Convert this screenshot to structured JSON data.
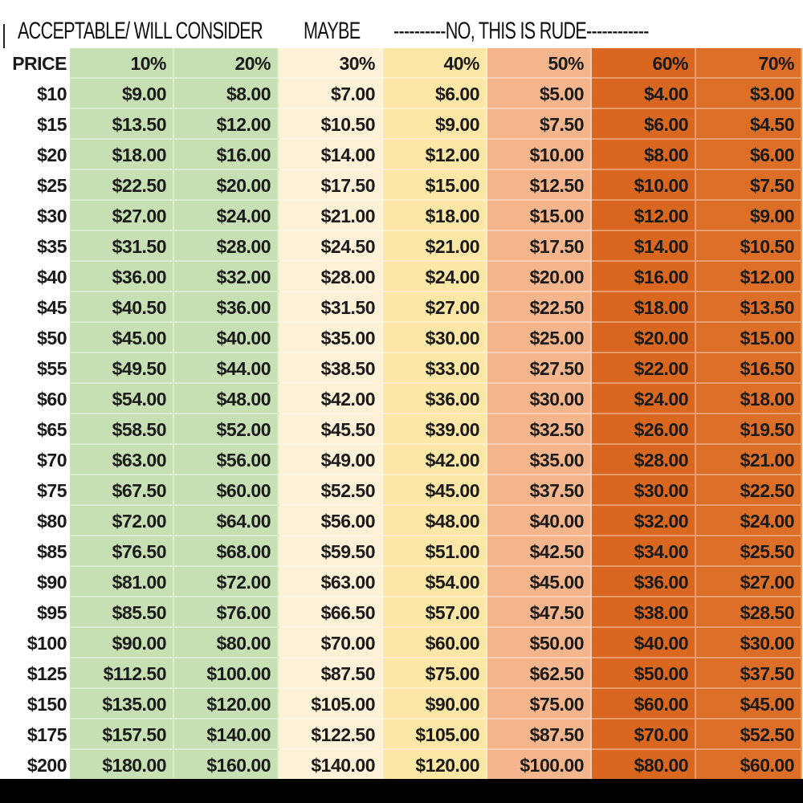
{
  "legend": {
    "acceptable": "ACCEPTABLE/ WILL CONSIDER",
    "maybe": "MAYBE",
    "rude": "----------NO, THIS IS RUDE------------"
  },
  "colors": {
    "price": "#ffffff",
    "10%": "#c6e0b4",
    "20%": "#c6e0b4",
    "30%": "#fdf2d8",
    "40%": "#fce7a6",
    "50%": "#f4b58c",
    "60%": "#d9671f",
    "70%": "#dc6e28"
  },
  "chart_data": {
    "type": "table",
    "columns": [
      "PRICE",
      "10%",
      "20%",
      "30%",
      "40%",
      "50%",
      "60%",
      "70%"
    ],
    "rows": [
      [
        "$10",
        "$9.00",
        "$8.00",
        "$7.00",
        "$6.00",
        "$5.00",
        "$4.00",
        "$3.00"
      ],
      [
        "$15",
        "$13.50",
        "$12.00",
        "$10.50",
        "$9.00",
        "$7.50",
        "$6.00",
        "$4.50"
      ],
      [
        "$20",
        "$18.00",
        "$16.00",
        "$14.00",
        "$12.00",
        "$10.00",
        "$8.00",
        "$6.00"
      ],
      [
        "$25",
        "$22.50",
        "$20.00",
        "$17.50",
        "$15.00",
        "$12.50",
        "$10.00",
        "$7.50"
      ],
      [
        "$30",
        "$27.00",
        "$24.00",
        "$21.00",
        "$18.00",
        "$15.00",
        "$12.00",
        "$9.00"
      ],
      [
        "$35",
        "$31.50",
        "$28.00",
        "$24.50",
        "$21.00",
        "$17.50",
        "$14.00",
        "$10.50"
      ],
      [
        "$40",
        "$36.00",
        "$32.00",
        "$28.00",
        "$24.00",
        "$20.00",
        "$16.00",
        "$12.00"
      ],
      [
        "$45",
        "$40.50",
        "$36.00",
        "$31.50",
        "$27.00",
        "$22.50",
        "$18.00",
        "$13.50"
      ],
      [
        "$50",
        "$45.00",
        "$40.00",
        "$35.00",
        "$30.00",
        "$25.00",
        "$20.00",
        "$15.00"
      ],
      [
        "$55",
        "$49.50",
        "$44.00",
        "$38.50",
        "$33.00",
        "$27.50",
        "$22.00",
        "$16.50"
      ],
      [
        "$60",
        "$54.00",
        "$48.00",
        "$42.00",
        "$36.00",
        "$30.00",
        "$24.00",
        "$18.00"
      ],
      [
        "$65",
        "$58.50",
        "$52.00",
        "$45.50",
        "$39.00",
        "$32.50",
        "$26.00",
        "$19.50"
      ],
      [
        "$70",
        "$63.00",
        "$56.00",
        "$49.00",
        "$42.00",
        "$35.00",
        "$28.00",
        "$21.00"
      ],
      [
        "$75",
        "$67.50",
        "$60.00",
        "$52.50",
        "$45.00",
        "$37.50",
        "$30.00",
        "$22.50"
      ],
      [
        "$80",
        "$72.00",
        "$64.00",
        "$56.00",
        "$48.00",
        "$40.00",
        "$32.00",
        "$24.00"
      ],
      [
        "$85",
        "$76.50",
        "$68.00",
        "$59.50",
        "$51.00",
        "$42.50",
        "$34.00",
        "$25.50"
      ],
      [
        "$90",
        "$81.00",
        "$72.00",
        "$63.00",
        "$54.00",
        "$45.00",
        "$36.00",
        "$27.00"
      ],
      [
        "$95",
        "$85.50",
        "$76.00",
        "$66.50",
        "$57.00",
        "$47.50",
        "$38.00",
        "$28.50"
      ],
      [
        "$100",
        "$90.00",
        "$80.00",
        "$70.00",
        "$60.00",
        "$50.00",
        "$40.00",
        "$30.00"
      ],
      [
        "$125",
        "$112.50",
        "$100.00",
        "$87.50",
        "$75.00",
        "$62.50",
        "$50.00",
        "$37.50"
      ],
      [
        "$150",
        "$135.00",
        "$120.00",
        "$105.00",
        "$90.00",
        "$75.00",
        "$60.00",
        "$45.00"
      ],
      [
        "$175",
        "$157.50",
        "$140.00",
        "$122.50",
        "$105.00",
        "$87.50",
        "$70.00",
        "$52.50"
      ],
      [
        "$200",
        "$180.00",
        "$160.00",
        "$140.00",
        "$120.00",
        "$100.00",
        "$80.00",
        "$60.00"
      ]
    ]
  }
}
